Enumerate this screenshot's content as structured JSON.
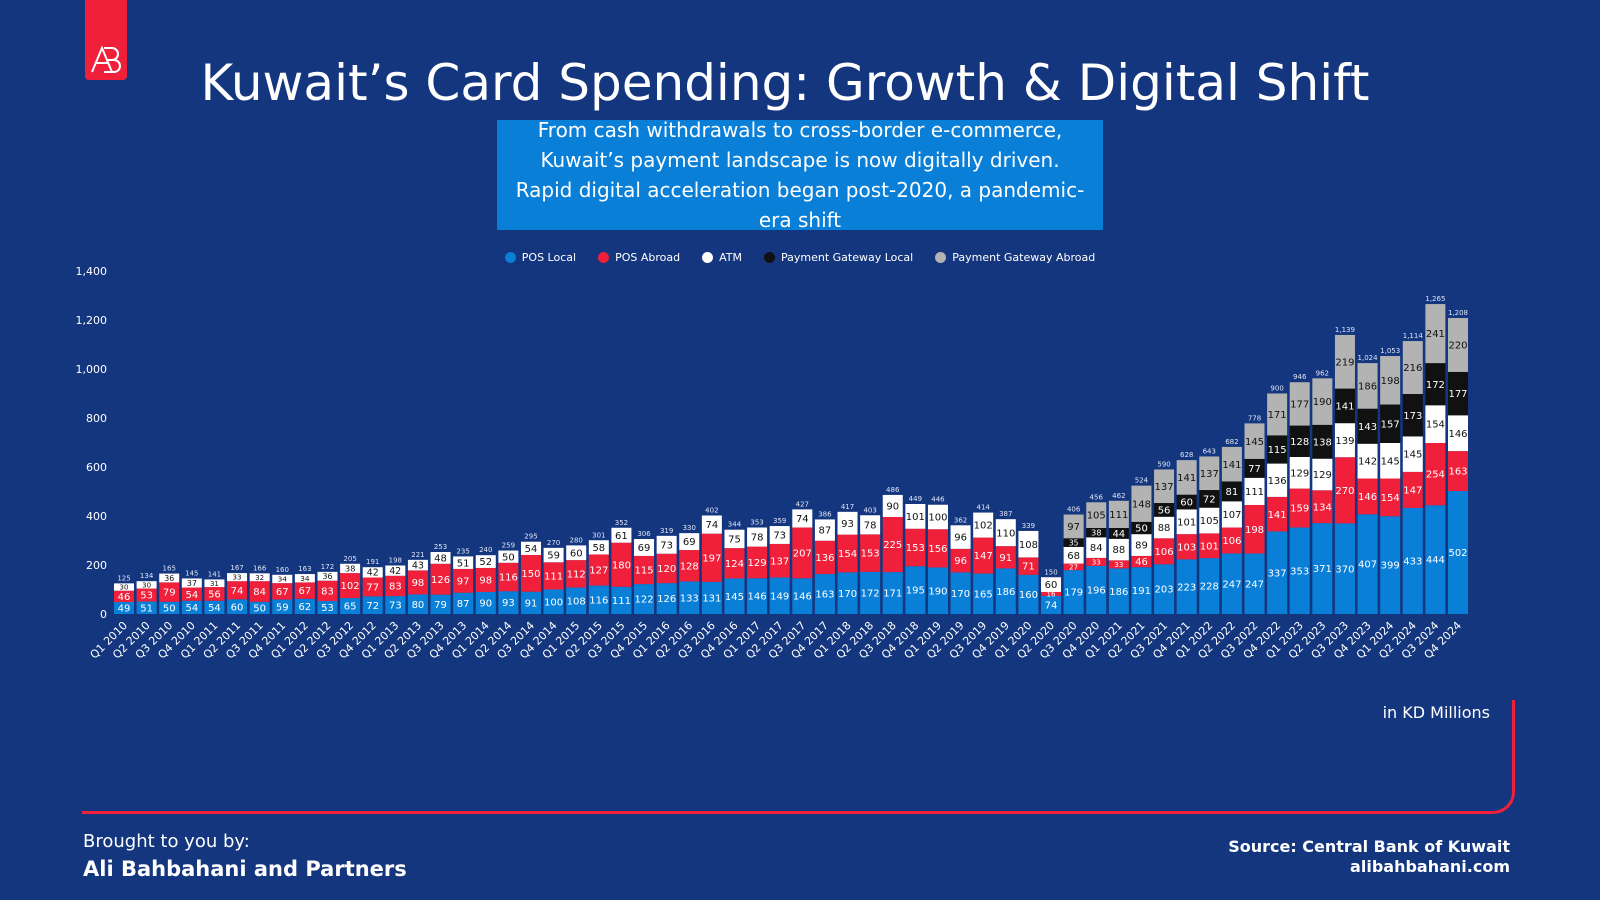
{
  "header": {
    "logo_text": "AB",
    "title": "Kuwait’s Card Spending: Growth & Digital Shift",
    "subtitle": "From cash withdrawals to cross-border e-commerce, Kuwait’s payment landscape is now digitally driven. Rapid digital acceleration began post-2020, a pandemic-era shift"
  },
  "footer": {
    "unit_note": "in KD Millions",
    "credit_label": "Brought to you by:",
    "credit_name": "Ali Bahbahani and Partners",
    "source": "Source: Central Bank of Kuwait",
    "website": "alibahbahani.com"
  },
  "colors": {
    "background": "#14367f",
    "accent": "#f0203a",
    "subtitle_box": "#0a7fd8"
  },
  "chart_data": {
    "type": "bar",
    "stacked": true,
    "ylim": [
      0,
      1400
    ],
    "yticks": [
      0,
      200,
      400,
      600,
      800,
      1000,
      1200,
      1400
    ],
    "ytick_labels": [
      "0",
      "200",
      "400",
      "600",
      "800",
      "1,000",
      "1,200",
      "1,400"
    ],
    "grid": false,
    "legend_position": "top-center",
    "categories": [
      "Q1 2010",
      "Q2 2010",
      "Q3 2010",
      "Q4 2010",
      "Q1 2011",
      "Q2 2011",
      "Q3 2011",
      "Q4 2011",
      "Q1 2012",
      "Q2 2012",
      "Q3 2012",
      "Q4 2012",
      "Q1 2013",
      "Q2 2013",
      "Q3 2013",
      "Q4 2013",
      "Q1 2014",
      "Q2 2014",
      "Q3 2014",
      "Q4 2014",
      "Q1 2015",
      "Q2 2015",
      "Q3 2015",
      "Q4 2015",
      "Q1 2016",
      "Q2 2016",
      "Q3 2016",
      "Q4 2016",
      "Q1 2017",
      "Q2 2017",
      "Q3 2017",
      "Q4 2017",
      "Q1 2018",
      "Q2 2018",
      "Q3 2018",
      "Q4 2018",
      "Q1 2019",
      "Q2 2019",
      "Q3 2019",
      "Q4 2019",
      "Q1 2020",
      "Q2 2020",
      "Q3 2020",
      "Q4 2020",
      "Q1 2021",
      "Q2 2021",
      "Q3 2021",
      "Q4 2021",
      "Q1 2022",
      "Q2 2022",
      "Q3 2022",
      "Q4 2022",
      "Q1 2023",
      "Q2 2023",
      "Q3 2023",
      "Q4 2023",
      "Q1 2024",
      "Q2 2024",
      "Q3 2024",
      "Q4 2024"
    ],
    "series": [
      {
        "name": "POS Local",
        "color": "#0a7fd8",
        "label_color": "#ffffff",
        "values": [
          49,
          51,
          50,
          54,
          54,
          60,
          50,
          59,
          62,
          53,
          65,
          72,
          73,
          80,
          79,
          87,
          90,
          93,
          91,
          100,
          108,
          116,
          111,
          122,
          126,
          133,
          131,
          145,
          146,
          149,
          146,
          163,
          170,
          172,
          171,
          195,
          190,
          170,
          165,
          186,
          160,
          74,
          179,
          196,
          186,
          191,
          203,
          223,
          228,
          247,
          247,
          337,
          353,
          371,
          370,
          407,
          399,
          433,
          444,
          502
        ]
      },
      {
        "name": "POS Abroad",
        "color": "#f0203a",
        "label_color": "#ffffff",
        "values": [
          46,
          53,
          79,
          54,
          56,
          74,
          84,
          67,
          67,
          83,
          102,
          77,
          83,
          98,
          126,
          97,
          98,
          116,
          150,
          111,
          112,
          127,
          180,
          115,
          120,
          128,
          197,
          124,
          129,
          137,
          207,
          136,
          154,
          153,
          225,
          153,
          156,
          96,
          147,
          91,
          71,
          16,
          27,
          33,
          33,
          46,
          106,
          103,
          101,
          106,
          198,
          141,
          159,
          134,
          270,
          146,
          154,
          147,
          254,
          163
        ]
      },
      {
        "name": "ATM",
        "color": "#ffffff",
        "label_color": "#111111",
        "values": [
          30,
          30,
          36,
          37,
          31,
          33,
          32,
          34,
          34,
          36,
          38,
          42,
          42,
          43,
          48,
          51,
          52,
          50,
          54,
          59,
          60,
          58,
          61,
          69,
          73,
          69,
          74,
          75,
          78,
          73,
          74,
          87,
          93,
          78,
          90,
          101,
          100,
          96,
          102,
          110,
          108,
          60,
          68,
          84,
          88,
          89,
          88,
          101,
          105,
          107,
          111,
          136,
          129,
          129,
          139,
          142,
          145,
          145,
          154,
          146
        ]
      },
      {
        "name": "Payment Gateway Local",
        "color": "#111111",
        "label_color": "#ffffff",
        "values": [
          null,
          null,
          null,
          null,
          null,
          null,
          null,
          null,
          null,
          null,
          null,
          null,
          null,
          null,
          null,
          null,
          null,
          null,
          null,
          null,
          null,
          null,
          null,
          null,
          null,
          null,
          null,
          null,
          null,
          null,
          null,
          null,
          null,
          null,
          null,
          null,
          null,
          null,
          null,
          null,
          null,
          null,
          35,
          38,
          44,
          50,
          56,
          60,
          72,
          81,
          77,
          115,
          128,
          138,
          141,
          143,
          157,
          173,
          172,
          177
        ]
      },
      {
        "name": "Payment Gateway Abroad",
        "color": "#b3b3b3",
        "label_color": "#111111",
        "values": [
          null,
          null,
          null,
          null,
          null,
          null,
          null,
          null,
          null,
          null,
          null,
          null,
          null,
          null,
          null,
          null,
          null,
          null,
          null,
          null,
          null,
          null,
          null,
          null,
          null,
          null,
          null,
          null,
          null,
          null,
          null,
          null,
          null,
          null,
          null,
          null,
          null,
          null,
          null,
          null,
          null,
          null,
          97,
          105,
          111,
          148,
          137,
          141,
          137,
          141,
          145,
          171,
          177,
          190,
          219,
          186,
          198,
          216,
          241,
          220
        ]
      }
    ],
    "totals": [
      "125",
      "134",
      "165",
      "145",
      "141",
      "167",
      "166",
      "160",
      "163",
      "172",
      "205",
      "191",
      "198",
      "221",
      "253",
      "235",
      "240",
      "259",
      "295",
      "270",
      "280",
      "301",
      "352",
      "306",
      "319",
      "330",
      "402",
      "344",
      "353",
      "359",
      "427",
      "386",
      "417",
      "403",
      "486",
      "449",
      "446",
      "362",
      "414",
      "387",
      "339",
      "150",
      "406",
      "456",
      "462",
      "524",
      "590",
      "628",
      "643",
      "682",
      "778",
      "900",
      "946",
      "962",
      "1,139",
      "1,024",
      "1,053",
      "1,114",
      "1,265",
      "1,208"
    ]
  }
}
